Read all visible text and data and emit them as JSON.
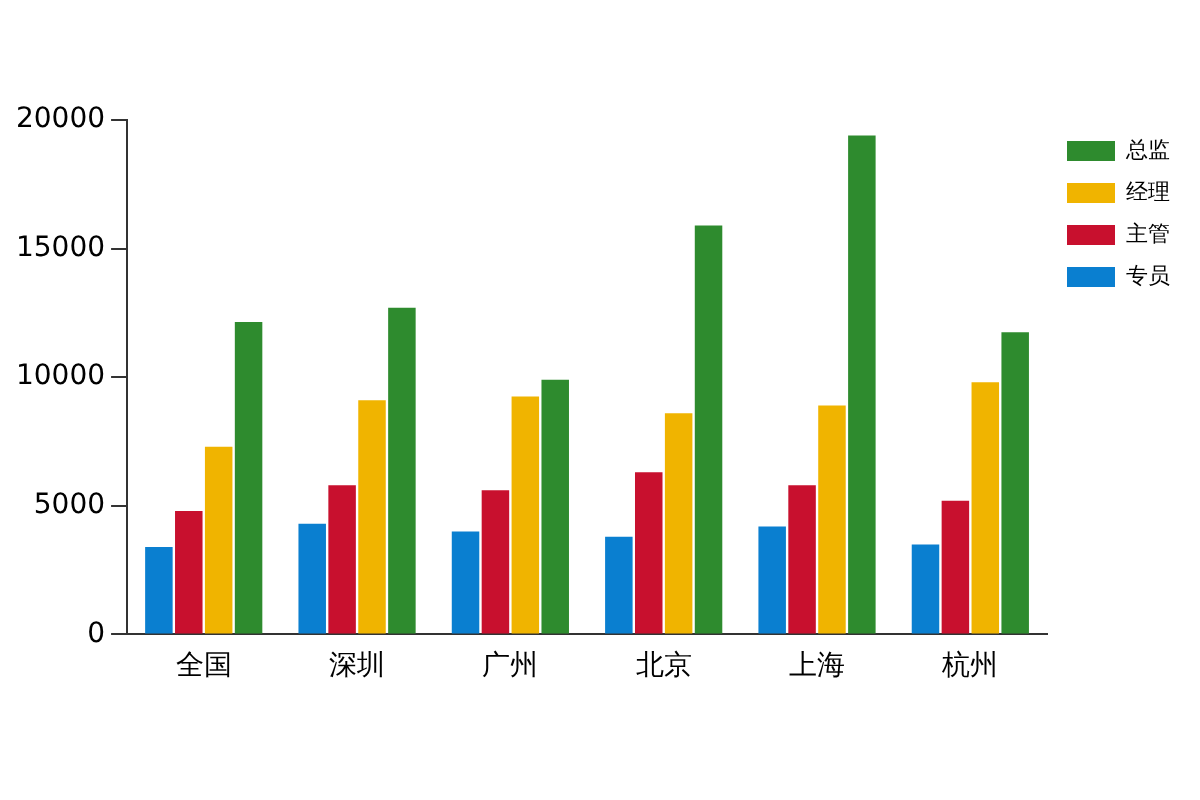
{
  "chart_data": {
    "type": "bar",
    "categories": [
      "全国",
      "深圳",
      "广州",
      "北京",
      "上海",
      "杭州"
    ],
    "series": [
      {
        "name": "专员",
        "color": "#0a7fd0",
        "values": [
          3400,
          4300,
          4000,
          3800,
          4200,
          3500
        ]
      },
      {
        "name": "主管",
        "color": "#c8102e",
        "values": [
          4800,
          5800,
          5600,
          6300,
          5800,
          5200
        ]
      },
      {
        "name": "经理",
        "color": "#f0b400",
        "values": [
          7300,
          9100,
          9250,
          8600,
          8900,
          9800
        ]
      },
      {
        "name": "总监",
        "color": "#2e8b2e",
        "values": [
          12150,
          12700,
          9900,
          15900,
          19400,
          11750
        ]
      }
    ],
    "ylim": [
      0,
      20000
    ],
    "yticks": [
      0,
      5000,
      10000,
      15000,
      20000
    ],
    "grid": false,
    "legend": "top right"
  }
}
